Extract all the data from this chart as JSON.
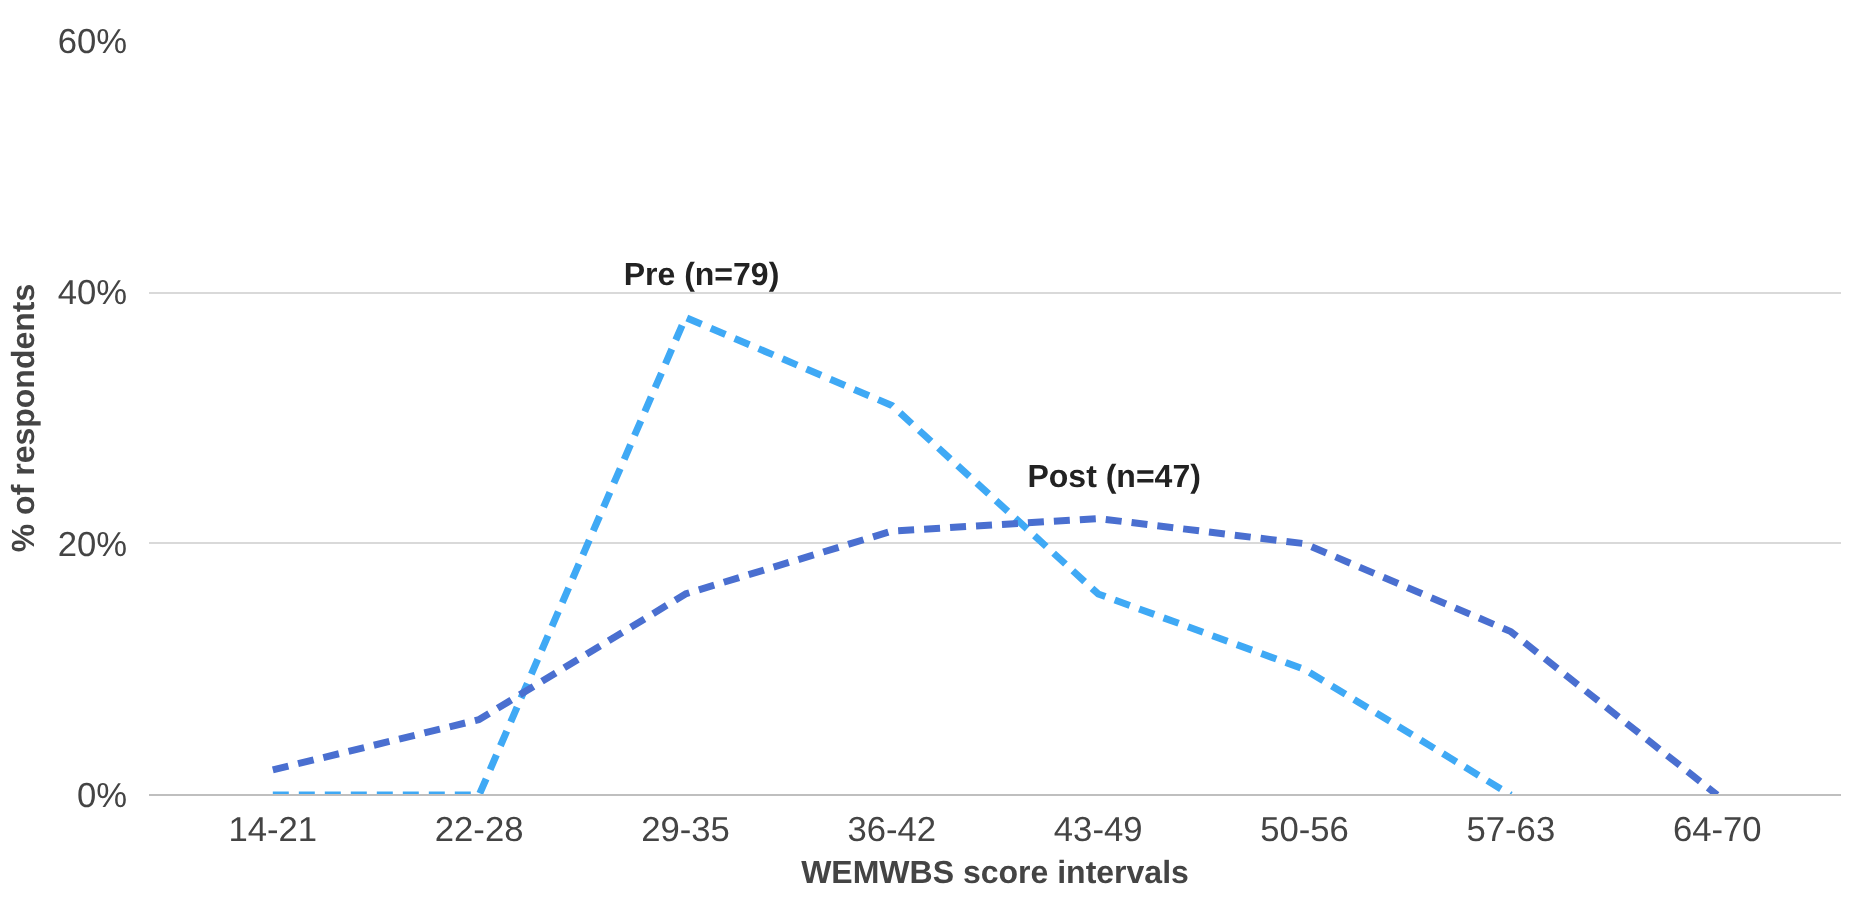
{
  "chart_data": {
    "type": "line",
    "xlabel": "WEMWBS score intervals",
    "ylabel": "% of respondents",
    "categories": [
      "14-21",
      "22-28",
      "29-35",
      "36-42",
      "43-49",
      "50-56",
      "57-63",
      "64-70"
    ],
    "series": [
      {
        "name": "Pre (n=79)",
        "color": "#3fa9f5",
        "values": [
          0,
          0,
          38,
          31,
          16,
          10,
          0,
          null
        ]
      },
      {
        "name": "Post (n=47)",
        "color": "#4a6fd0",
        "values": [
          2,
          6,
          16,
          21,
          22,
          20,
          13,
          0
        ]
      }
    ],
    "ylim": [
      0,
      60
    ],
    "yticks": [
      {
        "value": 0,
        "label": "0%"
      },
      {
        "value": 20,
        "label": "20%"
      },
      {
        "value": 40,
        "label": "40%"
      },
      {
        "value": 60,
        "label": "60%"
      }
    ],
    "grid": "y",
    "marker": "none",
    "line_style": "dashed"
  }
}
